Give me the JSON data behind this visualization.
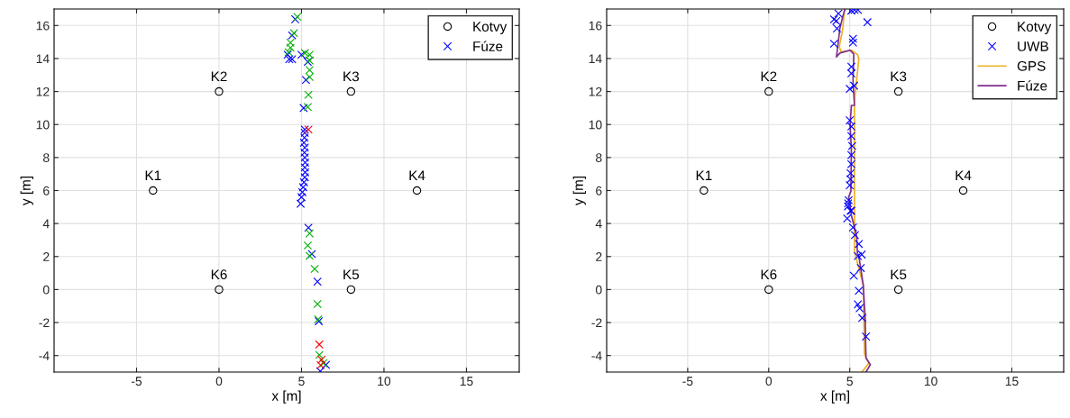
{
  "chart_data": [
    {
      "type": "scatter",
      "xlabel": "x [m]",
      "ylabel": "y [m]",
      "xlim": [
        -10,
        18.2
      ],
      "ylim": [
        -5,
        17
      ],
      "xticks": [
        -5,
        0,
        5,
        10,
        15
      ],
      "yticks": [
        -4,
        -2,
        0,
        2,
        4,
        6,
        8,
        10,
        12,
        14,
        16
      ],
      "grid": true,
      "legend": "top right",
      "series": [
        {
          "name": "Kotvy",
          "marker": "circle",
          "color": "#000000",
          "x": [
            -4,
            0,
            8,
            12,
            8,
            0
          ],
          "values": [
            6,
            12,
            12,
            6,
            0,
            0
          ]
        },
        {
          "name": "Fúze",
          "marker": "cross",
          "color": "#0000ff",
          "x": [
            4.62,
            4.43,
            4.16,
            4.26,
            4.43,
            5.0,
            5.38,
            5.27,
            5.13,
            5.2,
            5.2,
            5.18,
            5.15,
            5.2,
            5.18,
            5.2,
            5.22,
            5.2,
            5.22,
            5.2,
            5.15,
            5.1,
            5.05,
            5.0,
            4.95,
            5.42,
            5.63,
            5.97,
            6.05,
            6.48,
            6.14
          ],
          "values": [
            16.38,
            15.4,
            14.23,
            13.96,
            13.96,
            14.23,
            13.8,
            12.7,
            11.0,
            9.7,
            9.5,
            9.2,
            8.9,
            8.6,
            8.3,
            8.0,
            7.7,
            7.4,
            7.1,
            6.8,
            6.5,
            6.2,
            5.9,
            5.6,
            5.2,
            3.75,
            2.15,
            0.48,
            -1.92,
            -4.56,
            -4.95
          ]
        },
        {
          "marker": "cross",
          "color": "#00b000",
          "x": [
            4.75,
            4.54,
            4.33,
            4.33,
            4.22,
            5.21,
            5.49,
            5.49,
            5.49,
            5.49,
            5.42,
            5.38,
            5.49,
            5.38,
            5.49,
            5.8,
            5.97,
            6.01,
            6.08,
            6.33
          ],
          "values": [
            16.52,
            15.54,
            14.96,
            14.65,
            14.38,
            14.33,
            14.23,
            13.88,
            13.3,
            12.88,
            11.8,
            11.06,
            3.4,
            2.67,
            2.04,
            1.25,
            -0.88,
            -1.81,
            -3.96,
            -4.46
          ]
        },
        {
          "marker": "cross",
          "color": "#ff0000",
          "x": [
            5.42,
            6.08,
            6.22,
            6.16
          ],
          "values": [
            9.7,
            -3.33,
            -4.25,
            -4.58
          ]
        }
      ],
      "annotations": [
        {
          "text": "K1",
          "x": -4,
          "y": 6
        },
        {
          "text": "K2",
          "x": 0,
          "y": 12
        },
        {
          "text": "K3",
          "x": 8,
          "y": 12
        },
        {
          "text": "K4",
          "x": 12,
          "y": 6
        },
        {
          "text": "K5",
          "x": 8,
          "y": 0
        },
        {
          "text": "K6",
          "x": 0,
          "y": 0
        }
      ]
    },
    {
      "type": "scatter",
      "xlabel": "x [m]",
      "ylabel": "y [m]",
      "xlim": [
        -10,
        18.2
      ],
      "ylim": [
        -5,
        17
      ],
      "xticks": [
        -5,
        0,
        5,
        10,
        15
      ],
      "yticks": [
        -4,
        -2,
        0,
        2,
        4,
        6,
        8,
        10,
        12,
        14,
        16
      ],
      "grid": true,
      "legend": "top right",
      "series": [
        {
          "name": "Kotvy",
          "marker": "circle",
          "color": "#000000",
          "x": [
            -4,
            0,
            8,
            12,
            8,
            0
          ],
          "values": [
            6,
            12,
            12,
            6,
            0,
            0
          ]
        },
        {
          "name": "UWB",
          "marker": "cross",
          "color": "#0000ff",
          "x": [
            5.1,
            5.3,
            5.5,
            4.3,
            4.03,
            4.17,
            4.21,
            6.09,
            4.03,
            5.2,
            5.2,
            5.1,
            5.1,
            5.27,
            5.0,
            5.0,
            5.1,
            5.1,
            5.15,
            5.1,
            5.1,
            5.05,
            5.05,
            5.0,
            4.9,
            5.05,
            4.93,
            4.89,
            5.1,
            4.84,
            5.2,
            5.32,
            5.56,
            5.74,
            5.5,
            5.68,
            5.25,
            5.56,
            5.5,
            5.61,
            5.77,
            6.0
          ],
          "values": [
            16.9,
            16.95,
            16.95,
            16.73,
            16.37,
            16.28,
            15.82,
            16.2,
            14.9,
            15.2,
            14.97,
            13.5,
            13.1,
            12.35,
            12.16,
            10.25,
            9.88,
            9.3,
            8.7,
            8.15,
            7.6,
            7.05,
            6.68,
            6.32,
            5.22,
            4.77,
            5.41,
            5.04,
            4.77,
            4.31,
            3.76,
            3.3,
            2.76,
            2.12,
            2.03,
            1.3,
            0.84,
            -0.07,
            -0.9,
            -1.13,
            -1.72,
            -2.85
          ]
        },
        {
          "name": "GPS",
          "type": "line",
          "marker": "none",
          "color": "#edb120",
          "x": [
            5.75,
            6.18,
            5.91,
            5.83,
            5.29,
            5.29,
            5.29,
            5.56,
            5.47,
            5.1,
            4.48,
            4.35,
            4.57,
            4.66,
            4.7
          ],
          "values": [
            -5.0,
            -4.45,
            -3.9,
            0.3,
            2.3,
            5.6,
            11.4,
            14.0,
            14.25,
            14.5,
            14.4,
            14.7,
            15.8,
            16.9,
            17.0
          ]
        },
        {
          "name": "Fúze",
          "type": "line",
          "marker": "none",
          "color": "#7e2f8e",
          "x": [
            6.0,
            6.27,
            6.0,
            5.95,
            5.83,
            5.56,
            5.47,
            5.43,
            5.1,
            4.93,
            5.07,
            5.1,
            5.02,
            5.1,
            5.29,
            5.2,
            5.25,
            5.02,
            4.39,
            4.18,
            4.39,
            4.57,
            4.71
          ],
          "values": [
            -5.0,
            -4.55,
            -4.15,
            -1.72,
            0.29,
            2.03,
            2.21,
            3.2,
            4.5,
            5.6,
            5.95,
            8.5,
            9.97,
            11.16,
            11.16,
            12.71,
            14.26,
            14.5,
            14.33,
            14.1,
            15.82,
            16.55,
            17.0
          ]
        }
      ],
      "annotations": [
        {
          "text": "K1",
          "x": -4,
          "y": 6
        },
        {
          "text": "K2",
          "x": 0,
          "y": 12
        },
        {
          "text": "K3",
          "x": 8,
          "y": 12
        },
        {
          "text": "K4",
          "x": 12,
          "y": 6
        },
        {
          "text": "K5",
          "x": 8,
          "y": 0
        },
        {
          "text": "K6",
          "x": 0,
          "y": 0
        }
      ]
    }
  ]
}
